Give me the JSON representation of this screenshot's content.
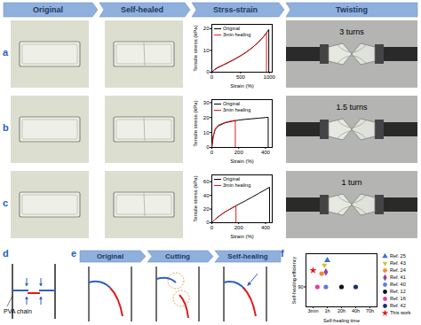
{
  "header": {
    "steps": [
      "Original",
      "Self-healed",
      "Strss-strain",
      "Twisting"
    ]
  },
  "rows": [
    {
      "label": "a",
      "twist": "3 turns"
    },
    {
      "label": "b",
      "twist": "1.5 turns"
    },
    {
      "label": "c",
      "twist": "1 turn"
    }
  ],
  "panel_d": {
    "label": "d",
    "text": "PVA chain"
  },
  "panel_e": {
    "label": "e",
    "steps": [
      "Original",
      "Cutting",
      "Self-healing"
    ]
  },
  "panel_f": {
    "label": "f"
  },
  "chart_data": [
    {
      "type": "line",
      "x_label": "Strain (%)",
      "y_label": "Tensile stress (kPa)",
      "xlim": [
        0,
        1050
      ],
      "xticks": [
        0,
        500,
        1000
      ],
      "ylim": [
        0,
        22
      ],
      "yticks": [
        0,
        10,
        20
      ],
      "legend": "upper left",
      "series": [
        {
          "name": "Original",
          "color": "#000000",
          "x": [
            0,
            50,
            100,
            200,
            300,
            400,
            500,
            600,
            700,
            800,
            900,
            990,
            990
          ],
          "values": [
            0,
            1.2,
            2,
            3.3,
            4.6,
            6,
            7.5,
            9.2,
            11.2,
            13.5,
            16.3,
            19.6,
            0
          ]
        },
        {
          "name": "3min healing",
          "color": "#e41a1c",
          "x": [
            0,
            50,
            100,
            200,
            300,
            400,
            500,
            600,
            700,
            800,
            900,
            950,
            950
          ],
          "values": [
            0,
            1.4,
            2.2,
            3.4,
            4.7,
            6.1,
            7.6,
            9.3,
            11.3,
            13.6,
            16.4,
            18.2,
            0
          ]
        }
      ]
    },
    {
      "type": "line",
      "x_label": "Strain (%)",
      "y_label": "Tensile stress (kPa)",
      "xlim": [
        0,
        450
      ],
      "xticks": [
        0,
        200,
        400
      ],
      "ylim": [
        0,
        32
      ],
      "yticks": [
        0,
        10,
        20,
        30
      ],
      "legend": "upper left",
      "series": [
        {
          "name": "Original",
          "color": "#000000",
          "x": [
            0,
            10,
            25,
            50,
            100,
            150,
            200,
            250,
            300,
            350,
            400,
            420,
            420
          ],
          "values": [
            0,
            7,
            12,
            14.5,
            16.5,
            17.5,
            18.3,
            18.8,
            19.2,
            19.6,
            20,
            20.2,
            0
          ]
        },
        {
          "name": "3min healing",
          "color": "#e41a1c",
          "x": [
            0,
            10,
            25,
            50,
            100,
            150,
            175,
            175
          ],
          "values": [
            0,
            7.5,
            12.5,
            15,
            16.8,
            17.8,
            18.2,
            0
          ]
        }
      ]
    },
    {
      "type": "line",
      "x_label": "Strain (%)",
      "y_label": "Tensile stress (kPa)",
      "xlim": [
        0,
        450
      ],
      "xticks": [
        0,
        200,
        400
      ],
      "ylim": [
        0,
        70
      ],
      "yticks": [
        0,
        20,
        40,
        60
      ],
      "legend": "upper left",
      "series": [
        {
          "name": "Original",
          "color": "#000000",
          "x": [
            0,
            25,
            50,
            100,
            150,
            200,
            250,
            300,
            350,
            400,
            430,
            430
          ],
          "values": [
            0,
            5,
            9,
            16,
            21.5,
            27,
            32,
            37.5,
            43,
            48.5,
            52,
            0
          ]
        },
        {
          "name": "3min healing",
          "color": "#e41a1c",
          "x": [
            0,
            25,
            50,
            100,
            150,
            180,
            180
          ],
          "values": [
            0,
            5,
            9,
            16,
            21.5,
            24.5,
            0
          ]
        }
      ]
    },
    {
      "type": "scatter",
      "x_label": "Self-healing time",
      "y_label": "Self-healing efficiency",
      "xlim": [
        -0.5,
        4.5
      ],
      "xticks": [
        {
          "value": 0,
          "label": "3min"
        },
        {
          "value": 1,
          "label": "1h"
        },
        {
          "value": 2,
          "label": "20h"
        },
        {
          "value": 3,
          "label": "40h"
        },
        {
          "value": 4,
          "label": "70h"
        }
      ],
      "ylim": [
        84,
        100
      ],
      "yticks": [
        90
      ],
      "legend": "right",
      "series": [
        {
          "name": "Ref. 25",
          "color": "#4472c4",
          "marker": "triangle",
          "x": [
            1
          ],
          "values": [
            98
          ]
        },
        {
          "name": "Ref. 43",
          "color": "#c8c832",
          "marker": "triangle-down",
          "x": [
            0.8
          ],
          "values": [
            96.5
          ]
        },
        {
          "name": "Ref. 24",
          "color": "#f28e2b",
          "marker": "circle",
          "x": [
            0.6
          ],
          "values": [
            94
          ]
        },
        {
          "name": "Ref. 41",
          "color": "#8e44ad",
          "marker": "diamond",
          "x": [
            0.9
          ],
          "values": [
            94.5
          ]
        },
        {
          "name": "Ref. 40",
          "color": "#5b7fd6",
          "marker": "circle",
          "x": [
            0.9
          ],
          "values": [
            90
          ]
        },
        {
          "name": "Ref. 12",
          "color": "#111111",
          "marker": "circle",
          "x": [
            2
          ],
          "values": [
            90
          ]
        },
        {
          "name": "Ref. 16",
          "color": "#e040a0",
          "marker": "circle",
          "x": [
            0.3
          ],
          "values": [
            90
          ]
        },
        {
          "name": "Ref. 42",
          "color": "#1f2f6e",
          "marker": "circle",
          "x": [
            3
          ],
          "values": [
            90
          ]
        },
        {
          "name": "This work",
          "color": "#e41a1c",
          "marker": "star",
          "x": [
            0
          ],
          "values": [
            95
          ]
        }
      ]
    }
  ]
}
